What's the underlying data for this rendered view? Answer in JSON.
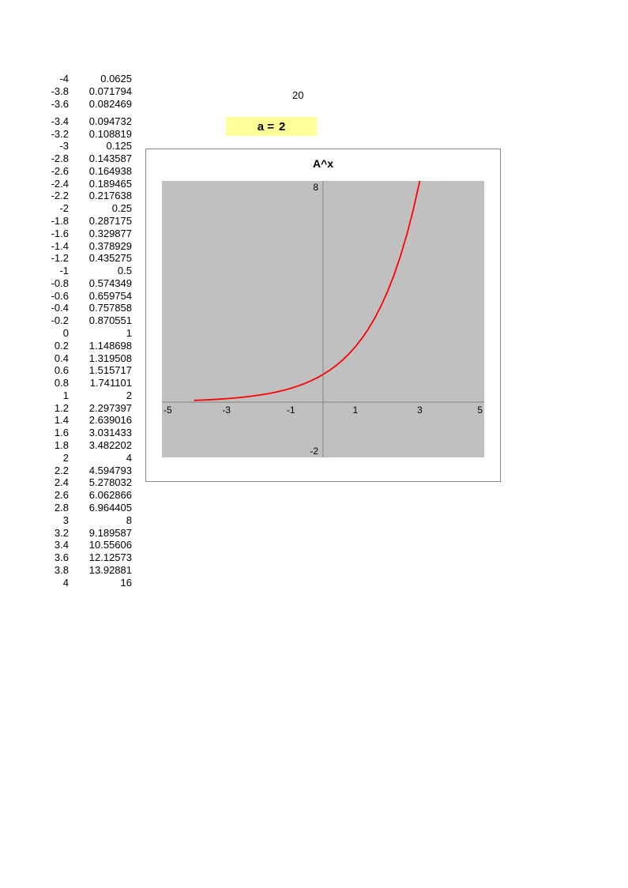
{
  "top_value": "20",
  "param": {
    "label": "a =",
    "value": "2",
    "bg": "#ffff99"
  },
  "table": {
    "gap_after_index": 2,
    "rows": [
      {
        "x": "-4",
        "y": "0.0625"
      },
      {
        "x": "-3.8",
        "y": "0.071794"
      },
      {
        "x": "-3.6",
        "y": "0.082469"
      },
      {
        "x": "-3.4",
        "y": "0.094732"
      },
      {
        "x": "-3.2",
        "y": "0.108819"
      },
      {
        "x": "-3",
        "y": "0.125"
      },
      {
        "x": "-2.8",
        "y": "0.143587"
      },
      {
        "x": "-2.6",
        "y": "0.164938"
      },
      {
        "x": "-2.4",
        "y": "0.189465"
      },
      {
        "x": "-2.2",
        "y": "0.217638"
      },
      {
        "x": "-2",
        "y": "0.25"
      },
      {
        "x": "-1.8",
        "y": "0.287175"
      },
      {
        "x": "-1.6",
        "y": "0.329877"
      },
      {
        "x": "-1.4",
        "y": "0.378929"
      },
      {
        "x": "-1.2",
        "y": "0.435275"
      },
      {
        "x": "-1",
        "y": "0.5"
      },
      {
        "x": "-0.8",
        "y": "0.574349"
      },
      {
        "x": "-0.6",
        "y": "0.659754"
      },
      {
        "x": "-0.4",
        "y": "0.757858"
      },
      {
        "x": "-0.2",
        "y": "0.870551"
      },
      {
        "x": "0",
        "y": "1"
      },
      {
        "x": "0.2",
        "y": "1.148698"
      },
      {
        "x": "0.4",
        "y": "1.319508"
      },
      {
        "x": "0.6",
        "y": "1.515717"
      },
      {
        "x": "0.8",
        "y": "1.741101"
      },
      {
        "x": "1",
        "y": "2"
      },
      {
        "x": "1.2",
        "y": "2.297397"
      },
      {
        "x": "1.4",
        "y": "2.639016"
      },
      {
        "x": "1.6",
        "y": "3.031433"
      },
      {
        "x": "1.8",
        "y": "3.482202"
      },
      {
        "x": "2",
        "y": "4"
      },
      {
        "x": "2.2",
        "y": "4.594793"
      },
      {
        "x": "2.4",
        "y": "5.278032"
      },
      {
        "x": "2.6",
        "y": "6.062866"
      },
      {
        "x": "2.8",
        "y": "6.964405"
      },
      {
        "x": "3",
        "y": "8"
      },
      {
        "x": "3.2",
        "y": "9.189587"
      },
      {
        "x": "3.4",
        "y": "10.55606"
      },
      {
        "x": "3.6",
        "y": "12.12573"
      },
      {
        "x": "3.8",
        "y": "13.92881"
      },
      {
        "x": "4",
        "y": "16"
      }
    ]
  },
  "chart": {
    "type": "line",
    "title": "A^x",
    "title_fontsize": 14,
    "plot_bg": "#c0c0c0",
    "frame_border": "#888888",
    "axis_color": "#808080",
    "curve_color": "#ff0000",
    "curve_width": 1.8,
    "xlim": [
      -5,
      5
    ],
    "ylim": [
      -2,
      8
    ],
    "x_ticks": [
      -5,
      -3,
      -1,
      1,
      3,
      5
    ],
    "y_ticks": [
      -2,
      8
    ],
    "tick_fontsize": 12,
    "series": {
      "x": [
        -4,
        -3.8,
        -3.6,
        -3.4,
        -3.2,
        -3,
        -2.8,
        -2.6,
        -2.4,
        -2.2,
        -2,
        -1.8,
        -1.6,
        -1.4,
        -1.2,
        -1,
        -0.8,
        -0.6,
        -0.4,
        -0.2,
        0,
        0.2,
        0.4,
        0.6,
        0.8,
        1,
        1.2,
        1.4,
        1.6,
        1.8,
        2,
        2.2,
        2.4,
        2.6,
        2.8,
        3,
        3.2,
        3.4,
        3.6,
        3.8,
        4
      ],
      "y": [
        0.0625,
        0.071794,
        0.082469,
        0.094732,
        0.108819,
        0.125,
        0.143587,
        0.164938,
        0.189465,
        0.217638,
        0.25,
        0.287175,
        0.329877,
        0.378929,
        0.435275,
        0.5,
        0.574349,
        0.659754,
        0.757858,
        0.870551,
        1,
        1.148698,
        1.319508,
        1.515717,
        1.741101,
        2,
        2.297397,
        2.639016,
        3.031433,
        3.482202,
        4,
        4.594793,
        5.278032,
        6.062866,
        6.964405,
        8,
        9.189587,
        10.55606,
        12.12573,
        13.92881,
        16
      ]
    }
  }
}
